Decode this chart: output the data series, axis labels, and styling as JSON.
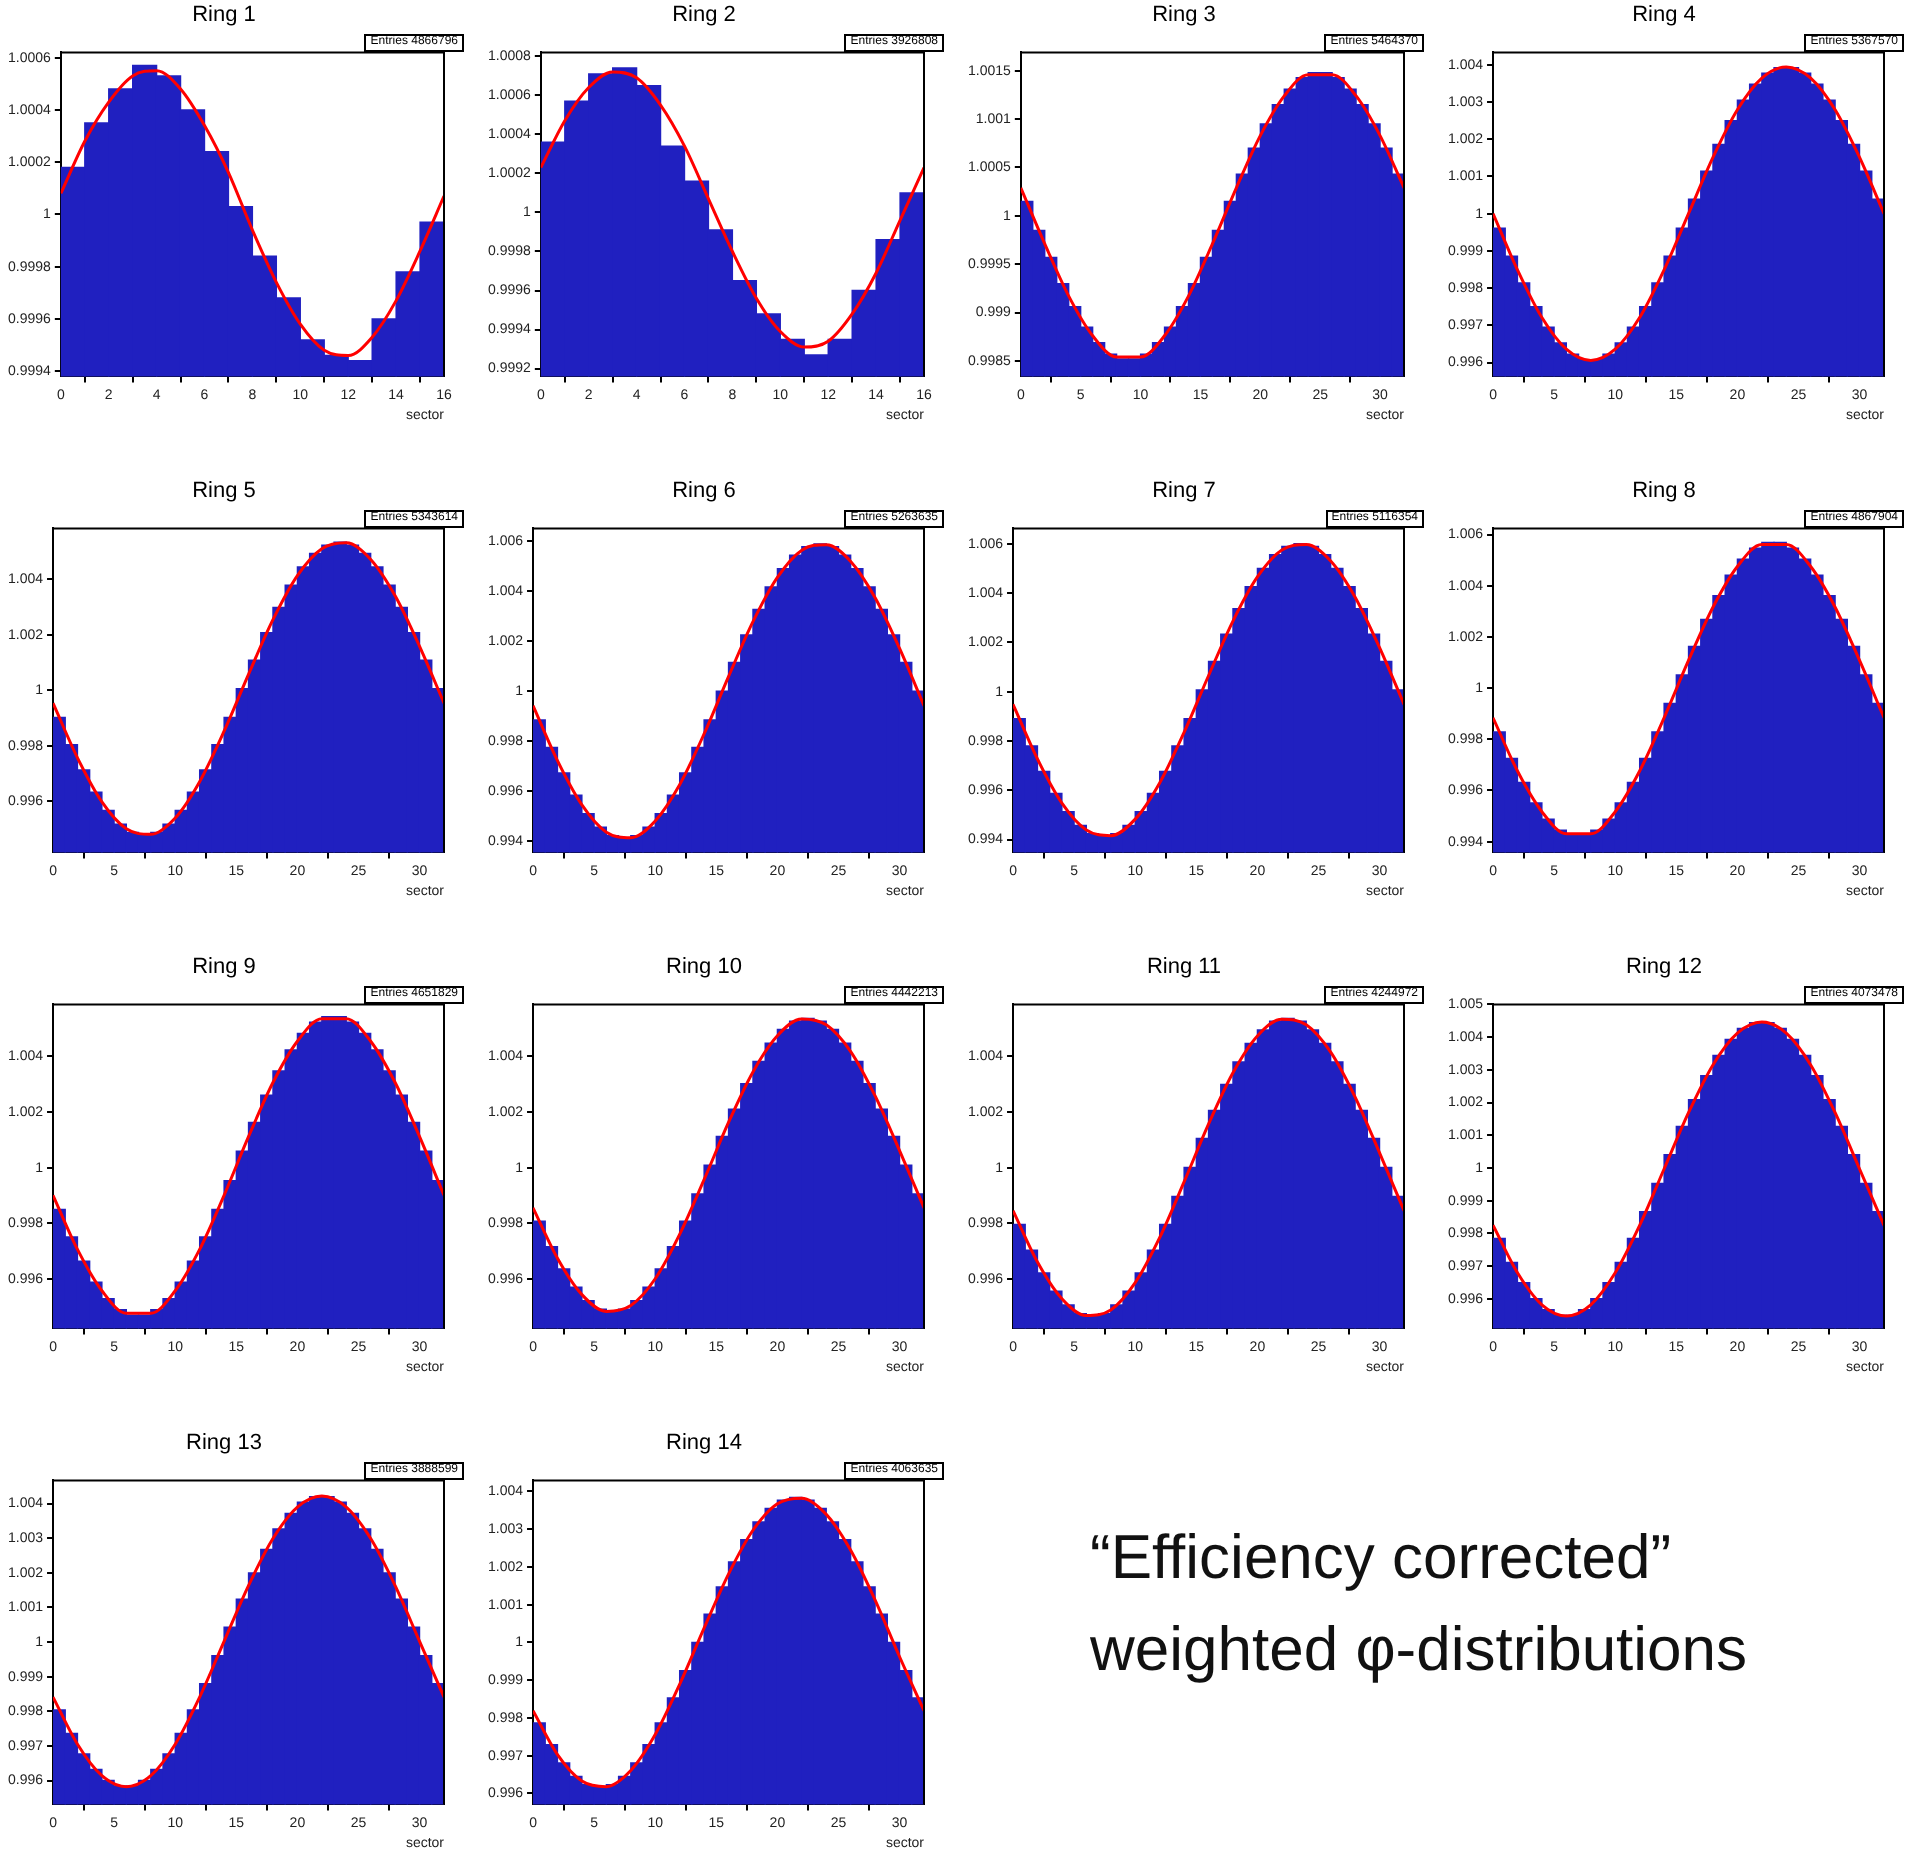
{
  "chart_data": [
    {
      "type": "histogram",
      "title": "Ring 1",
      "xlabel": "sector",
      "annotations": [
        "Entries 4866796"
      ],
      "bins": [
        0,
        1,
        2,
        3,
        4,
        5,
        6,
        7,
        8,
        9,
        10,
        11,
        12,
        13,
        14,
        15,
        16
      ],
      "xlim": [
        0,
        16
      ],
      "xticks": [
        0,
        2,
        4,
        6,
        8,
        10,
        12,
        14,
        16
      ],
      "ylim": [
        0.99938,
        1.00062
      ],
      "yticks": [
        0.9994,
        0.9996,
        0.9998,
        1,
        1.0002,
        1.0004,
        1.0006
      ],
      "series": [
        {
          "type": "histogram",
          "color": "#2020c0",
          "values": [
            1.00018,
            1.00035,
            1.00048,
            1.00057,
            1.00053,
            1.0004,
            1.00024,
            1.00003,
            0.99984,
            0.99968,
            0.99952,
            0.99946,
            0.99944,
            0.9996,
            0.99978,
            0.99997
          ]
        },
        {
          "type": "line",
          "color": "#ff0000",
          "x": [
            0,
            1,
            2,
            3,
            4,
            5,
            6,
            7,
            8,
            9,
            10,
            11,
            12,
            13,
            14,
            15,
            16
          ],
          "values": [
            1.00008,
            1.00028,
            1.00043,
            1.00053,
            1.00055,
            1.00048,
            1.00034,
            1.00016,
            0.99994,
            0.99974,
            0.99958,
            0.99948,
            0.99946,
            0.99953,
            0.99967,
            0.99986,
            1.00007
          ]
        }
      ]
    },
    {
      "type": "histogram",
      "title": "Ring 2",
      "xlabel": "sector",
      "annotations": [
        "Entries 3926808"
      ],
      "bins": [
        0,
        1,
        2,
        3,
        4,
        5,
        6,
        7,
        8,
        9,
        10,
        11,
        12,
        13,
        14,
        15,
        16
      ],
      "xlim": [
        0,
        16
      ],
      "xticks": [
        0,
        2,
        4,
        6,
        8,
        10,
        12,
        14,
        16
      ],
      "ylim": [
        0.99916,
        1.00082
      ],
      "yticks": [
        0.9992,
        0.9994,
        0.9996,
        0.9998,
        1,
        1.0002,
        1.0004,
        1.0006,
        1.0008
      ],
      "series": [
        {
          "type": "histogram",
          "color": "#2020c0",
          "values": [
            1.00036,
            1.00057,
            1.00071,
            1.00074,
            1.00065,
            1.00034,
            1.00016,
            0.99991,
            0.99965,
            0.99948,
            0.99935,
            0.99927,
            0.99935,
            0.9996,
            0.99986,
            1.0001
          ]
        },
        {
          "type": "line",
          "color": "#ff0000",
          "x": [
            0,
            1,
            2,
            3,
            4,
            5,
            6,
            7,
            8,
            9,
            10,
            11,
            12,
            13,
            14,
            15,
            16
          ],
          "values": [
            1.00023,
            1.00047,
            1.00064,
            1.00072,
            1.00069,
            1.00055,
            1.00034,
            1.00007,
            0.9998,
            0.99956,
            0.99939,
            0.99931,
            0.99934,
            0.99948,
            0.99969,
            0.99996,
            1.00023
          ]
        }
      ]
    },
    {
      "type": "histogram",
      "title": "Ring 3",
      "xlabel": "sector",
      "annotations": [
        "Entries 5464370"
      ],
      "bins": [
        0,
        1,
        2,
        3,
        4,
        5,
        6,
        7,
        8,
        9,
        10,
        11,
        12,
        13,
        14,
        15,
        16,
        17,
        18,
        19,
        20,
        21,
        22,
        23,
        24,
        25,
        26,
        27,
        28,
        29,
        30,
        31,
        32
      ],
      "xlim": [
        0,
        32
      ],
      "xticks": [
        0,
        5,
        10,
        15,
        20,
        25,
        30
      ],
      "ylim": [
        0.99834,
        1.00169
      ],
      "yticks": [
        0.9985,
        0.999,
        0.9995,
        1,
        1.0005,
        1.001,
        1.0015
      ],
      "series": [
        {
          "type": "histogram",
          "color": "#2020c0",
          "values": [
            1.00015,
            0.99985,
            0.99957,
            0.9993,
            0.99906,
            0.99885,
            0.99869,
            0.99857,
            0.99852,
            0.99852,
            0.99857,
            0.99869,
            0.99885,
            0.99906,
            0.9993,
            0.99957,
            0.99985,
            1.00015,
            1.00043,
            1.0007,
            1.00095,
            1.00115,
            1.00131,
            1.00143,
            1.00148,
            1.00148,
            1.00143,
            1.00131,
            1.00115,
            1.00095,
            1.0007,
            1.00043
          ]
        },
        {
          "type": "line",
          "color": "#ff0000",
          "x": [
            0,
            2,
            4,
            6,
            8,
            10,
            12,
            14,
            16,
            18,
            20,
            22,
            24,
            26,
            28,
            30,
            32
          ],
          "values": [
            1.00029,
            0.99971,
            0.99917,
            0.99876,
            0.99854,
            0.99854,
            0.99876,
            0.99917,
            0.99971,
            1.00029,
            1.00083,
            1.00124,
            1.00146,
            1.00146,
            1.00124,
            1.00083,
            1.00029
          ]
        }
      ]
    },
    {
      "type": "histogram",
      "title": "Ring 4",
      "xlabel": "sector",
      "annotations": [
        "Entries 5367570"
      ],
      "bins": [
        0,
        1,
        2,
        3,
        4,
        5,
        6,
        7,
        8,
        9,
        10,
        11,
        12,
        13,
        14,
        15,
        16,
        17,
        18,
        19,
        20,
        21,
        22,
        23,
        24,
        25,
        26,
        27,
        28,
        29,
        30,
        31,
        32
      ],
      "xlim": [
        0,
        32
      ],
      "xticks": [
        0,
        5,
        10,
        15,
        20,
        25,
        30
      ],
      "ylim": [
        0.99563,
        1.00433
      ],
      "yticks": [
        0.996,
        0.997,
        0.998,
        0.999,
        1,
        1.001,
        1.002,
        1.003,
        1.004
      ],
      "series": [
        {
          "type": "histogram",
          "color": "#2020c0",
          "values": [
            0.99961,
            0.99886,
            0.99814,
            0.9975,
            0.99695,
            0.99653,
            0.99623,
            0.99608,
            0.99608,
            0.99623,
            0.99653,
            0.99695,
            0.9975,
            0.99814,
            0.99886,
            0.99961,
            1.00039,
            1.00114,
            1.00186,
            1.0025,
            1.00305,
            1.00348,
            1.00377,
            1.00392,
            1.00392,
            1.00377,
            1.00348,
            1.00305,
            1.0025,
            1.00186,
            1.00114,
            1.00039
          ]
        },
        {
          "type": "line",
          "color": "#ff0000",
          "x": [
            0,
            2,
            4,
            6,
            8,
            10,
            12,
            14,
            16,
            18,
            20,
            22,
            24,
            26,
            28,
            30,
            32
          ],
          "values": [
            1,
            0.99849,
            0.99721,
            0.99636,
            0.99606,
            0.99636,
            0.99721,
            0.99849,
            1,
            1.00151,
            1.00279,
            1.00364,
            1.00394,
            1.00364,
            1.00279,
            1.00151,
            1
          ]
        }
      ]
    },
    {
      "type": "histogram",
      "title": "Ring 5",
      "xlabel": "sector",
      "annotations": [
        "Entries 5343614"
      ],
      "bins": [
        0,
        1,
        2,
        3,
        4,
        5,
        6,
        7,
        8,
        9,
        10,
        11,
        12,
        13,
        14,
        15,
        16,
        17,
        18,
        19,
        20,
        21,
        22,
        23,
        24,
        25,
        26,
        27,
        28,
        29,
        30,
        31,
        32
      ],
      "xlim": [
        0,
        32
      ],
      "xticks": [
        0,
        5,
        10,
        15,
        20,
        25,
        30
      ],
      "ylim": [
        0.99416,
        1.00584
      ],
      "yticks": [
        0.996,
        0.998,
        1,
        1.002,
        1.004
      ],
      "series": [
        {
          "type": "histogram",
          "color": "#2020c0",
          "values": [
            0.99903,
            0.99804,
            0.99713,
            0.99633,
            0.99567,
            0.99518,
            0.99488,
            0.99478,
            0.99488,
            0.99518,
            0.99567,
            0.99633,
            0.99713,
            0.99804,
            0.99903,
            1.00006,
            1.00109,
            1.00208,
            1.00299,
            1.00379,
            1.00445,
            1.00494,
            1.00524,
            1.00534,
            1.00524,
            1.00494,
            1.00445,
            1.00379,
            1.00299,
            1.00208,
            1.00109,
            1.00006
          ]
        },
        {
          "type": "line",
          "color": "#ff0000",
          "x": [
            0,
            2,
            4,
            6,
            8,
            10,
            12,
            14,
            16,
            18,
            20,
            22,
            24,
            26,
            28,
            30,
            32
          ],
          "values": [
            0.99954,
            0.99757,
            0.99598,
            0.99501,
            0.99481,
            0.9954,
            0.99671,
            0.99853,
            1.00058,
            1.00255,
            1.00414,
            1.00511,
            1.00532,
            1.00472,
            1.00341,
            1.00159,
            0.99954
          ]
        }
      ]
    },
    {
      "type": "histogram",
      "title": "Ring 6",
      "xlabel": "sector",
      "annotations": [
        "Entries 5263635"
      ],
      "bins": [
        0,
        1,
        2,
        3,
        4,
        5,
        6,
        7,
        8,
        9,
        10,
        11,
        12,
        13,
        14,
        15,
        16,
        17,
        18,
        19,
        20,
        21,
        22,
        23,
        24,
        25,
        26,
        27,
        28,
        29,
        30,
        31,
        32
      ],
      "xlim": [
        0,
        32
      ],
      "xticks": [
        0,
        5,
        10,
        15,
        20,
        25,
        30
      ],
      "ylim": [
        0.99356,
        1.00652
      ],
      "yticks": [
        0.994,
        0.996,
        0.998,
        1,
        1.002,
        1.004,
        1.006
      ],
      "series": [
        {
          "type": "histogram",
          "color": "#2020c0",
          "values": [
            0.99886,
            0.99776,
            0.99674,
            0.99585,
            0.99511,
            0.99457,
            0.99423,
            0.99412,
            0.99423,
            0.99457,
            0.99511,
            0.99585,
            0.99674,
            0.99776,
            0.99886,
            1.00001,
            1.00116,
            1.00226,
            1.00328,
            1.00418,
            1.00491,
            1.00545,
            1.00579,
            1.0059,
            1.00579,
            1.00545,
            1.00491,
            1.00418,
            1.00328,
            1.00226,
            1.00116,
            1.00001
          ]
        },
        {
          "type": "line",
          "color": "#ff0000",
          "x": [
            0,
            2,
            4,
            6,
            8,
            10,
            12,
            14,
            16,
            18,
            20,
            22,
            24,
            26,
            28,
            30,
            32
          ],
          "values": [
            0.99943,
            0.99723,
            0.99546,
            0.99437,
            0.99415,
            0.99482,
            0.99627,
            0.9983,
            1.00059,
            1.00279,
            1.00456,
            1.00565,
            1.00587,
            1.0052,
            1.00375,
            1.00172,
            0.99943
          ]
        }
      ]
    },
    {
      "type": "histogram",
      "title": "Ring 7",
      "xlabel": "sector",
      "annotations": [
        "Entries 5116354"
      ],
      "bins": [
        0,
        1,
        2,
        3,
        4,
        5,
        6,
        7,
        8,
        9,
        10,
        11,
        12,
        13,
        14,
        15,
        16,
        17,
        18,
        19,
        20,
        21,
        22,
        23,
        24,
        25,
        26,
        27,
        28,
        29,
        30,
        31,
        32
      ],
      "xlim": [
        0,
        32
      ],
      "xticks": [
        0,
        5,
        10,
        15,
        20,
        25,
        30
      ],
      "ylim": [
        0.99348,
        1.00663
      ],
      "yticks": [
        0.994,
        0.996,
        0.998,
        1,
        1.002,
        1.004,
        1.006
      ],
      "series": [
        {
          "type": "histogram",
          "color": "#2020c0",
          "values": [
            0.99891,
            0.9978,
            0.99677,
            0.99587,
            0.99513,
            0.99458,
            0.99424,
            0.99413,
            0.99424,
            0.99458,
            0.99513,
            0.99587,
            0.99677,
            0.9978,
            0.99891,
            1.00007,
            1.00123,
            1.00234,
            1.00337,
            1.00427,
            1.00501,
            1.00556,
            1.0059,
            1.00601,
            1.0059,
            1.00556,
            1.00501,
            1.00427,
            1.00337,
            1.00234,
            1.00123,
            1.00007
          ]
        },
        {
          "type": "line",
          "color": "#ff0000",
          "x": [
            0,
            2,
            4,
            6,
            8,
            10,
            12,
            14,
            16,
            18,
            20,
            22,
            24,
            26,
            28,
            30,
            32
          ],
          "values": [
            0.99949,
            0.99727,
            0.99548,
            0.99439,
            0.99416,
            0.99483,
            0.9963,
            0.99835,
            1.00065,
            1.00287,
            1.00466,
            1.00575,
            1.00598,
            1.00531,
            1.00384,
            1.00179,
            0.99949
          ]
        }
      ]
    },
    {
      "type": "histogram",
      "title": "Ring 8",
      "xlabel": "sector",
      "annotations": [
        "Entries 4867904"
      ],
      "bins": [
        0,
        1,
        2,
        3,
        4,
        5,
        6,
        7,
        8,
        9,
        10,
        11,
        12,
        13,
        14,
        15,
        16,
        17,
        18,
        19,
        20,
        21,
        22,
        23,
        24,
        25,
        26,
        27,
        28,
        29,
        30,
        31,
        32
      ],
      "xlim": [
        0,
        32
      ],
      "xticks": [
        0,
        5,
        10,
        15,
        20,
        25,
        30
      ],
      "ylim": [
        0.99358,
        1.00624
      ],
      "yticks": [
        0.994,
        0.996,
        0.998,
        1,
        1.002,
        1.004,
        1.006
      ],
      "series": [
        {
          "type": "histogram",
          "color": "#2020c0",
          "values": [
            0.99829,
            0.99725,
            0.99631,
            0.99551,
            0.99488,
            0.99445,
            0.99423,
            0.99423,
            0.99445,
            0.99488,
            0.99551,
            0.99631,
            0.99725,
            0.99829,
            0.9994,
            1.00052,
            1.00163,
            1.00268,
            1.00361,
            1.00441,
            1.00504,
            1.00547,
            1.00569,
            1.00569,
            1.00547,
            1.00504,
            1.00441,
            1.00361,
            1.00268,
            1.00163,
            1.00052,
            0.9994
          ]
        },
        {
          "type": "line",
          "color": "#ff0000",
          "x": [
            0,
            2,
            4,
            6,
            8,
            10,
            12,
            14,
            16,
            18,
            20,
            22,
            24,
            26,
            28,
            30,
            32
          ],
          "values": [
            0.99884,
            0.99676,
            0.99517,
            0.99431,
            0.99431,
            0.99517,
            0.99676,
            0.99884,
            1.00108,
            1.00316,
            1.00475,
            1.00561,
            1.00561,
            1.00475,
            1.00316,
            1.00108,
            0.99884
          ]
        }
      ]
    },
    {
      "type": "histogram",
      "title": "Ring 9",
      "xlabel": "sector",
      "annotations": [
        "Entries 4651829"
      ],
      "bins": [
        0,
        1,
        2,
        3,
        4,
        5,
        6,
        7,
        8,
        9,
        10,
        11,
        12,
        13,
        14,
        15,
        16,
        17,
        18,
        19,
        20,
        21,
        22,
        23,
        24,
        25,
        26,
        27,
        28,
        29,
        30,
        31,
        32
      ],
      "xlim": [
        0,
        32
      ],
      "xticks": [
        0,
        5,
        10,
        15,
        20,
        25,
        30
      ],
      "ylim": [
        0.99424,
        1.00585
      ],
      "yticks": [
        0.996,
        0.998,
        1,
        1.002,
        1.004
      ],
      "series": [
        {
          "type": "histogram",
          "color": "#2020c0",
          "values": [
            0.9985,
            0.99752,
            0.99665,
            0.9959,
            0.99531,
            0.99491,
            0.99471,
            0.99471,
            0.99491,
            0.99531,
            0.9959,
            0.99665,
            0.99752,
            0.9985,
            0.99953,
            1.00059,
            1.00162,
            1.0026,
            1.00347,
            1.00422,
            1.00481,
            1.00521,
            1.00541,
            1.00541,
            1.00521,
            1.00481,
            1.00422,
            1.00347,
            1.0026,
            1.00162,
            1.00059,
            0.99953
          ]
        },
        {
          "type": "line",
          "color": "#ff0000",
          "x": [
            0,
            2,
            4,
            6,
            8,
            10,
            12,
            14,
            16,
            18,
            20,
            22,
            24,
            26,
            28,
            30,
            32
          ],
          "values": [
            0.99901,
            0.99707,
            0.99559,
            0.99478,
            0.99478,
            0.99559,
            0.99707,
            0.99901,
            1.00111,
            1.00305,
            1.00453,
            1.00534,
            1.00534,
            1.00453,
            1.00305,
            1.00111,
            0.99901
          ]
        }
      ]
    },
    {
      "type": "histogram",
      "title": "Ring 10",
      "xlabel": "sector",
      "annotations": [
        "Entries 4442213"
      ],
      "bins": [
        0,
        1,
        2,
        3,
        4,
        5,
        6,
        7,
        8,
        9,
        10,
        11,
        12,
        13,
        14,
        15,
        16,
        17,
        18,
        19,
        20,
        21,
        22,
        23,
        24,
        25,
        26,
        27,
        28,
        29,
        30,
        31,
        32
      ],
      "xlim": [
        0,
        32
      ],
      "xticks": [
        0,
        5,
        10,
        15,
        20,
        25,
        30
      ],
      "ylim": [
        0.99424,
        1.00585
      ],
      "yticks": [
        0.996,
        0.998,
        1,
        1.002,
        1.004
      ],
      "series": [
        {
          "type": "histogram",
          "color": "#2020c0",
          "values": [
            0.99808,
            0.99717,
            0.99637,
            0.99572,
            0.99523,
            0.99493,
            0.99483,
            0.99493,
            0.99523,
            0.99572,
            0.99637,
            0.99717,
            0.99808,
            0.99906,
            1.00009,
            1.00112,
            1.0021,
            1.00301,
            1.00381,
            1.00446,
            1.00495,
            1.00525,
            1.00535,
            1.00525,
            1.00495,
            1.00446,
            1.00381,
            1.00301,
            1.0021,
            1.00112,
            1.00009,
            0.99906
          ]
        },
        {
          "type": "line",
          "color": "#ff0000",
          "x": [
            0,
            2,
            4,
            6,
            8,
            10,
            12,
            14,
            16,
            18,
            20,
            22,
            24,
            26,
            28,
            30,
            32
          ],
          "values": [
            0.99856,
            0.99675,
            0.99545,
            0.99485,
            0.99506,
            0.99602,
            0.99761,
            0.99957,
            1.00162,
            1.00343,
            1.00473,
            1.00533,
            1.00512,
            1.00416,
            1.00257,
            1.00061,
            0.99856
          ]
        }
      ]
    },
    {
      "type": "histogram",
      "title": "Ring 11",
      "xlabel": "sector",
      "annotations": [
        "Entries 4244972"
      ],
      "bins": [
        0,
        1,
        2,
        3,
        4,
        5,
        6,
        7,
        8,
        9,
        10,
        11,
        12,
        13,
        14,
        15,
        16,
        17,
        18,
        19,
        20,
        21,
        22,
        23,
        24,
        25,
        26,
        27,
        28,
        29,
        30,
        31,
        32
      ],
      "xlim": [
        0,
        32
      ],
      "xticks": [
        0,
        5,
        10,
        15,
        20,
        25,
        30
      ],
      "ylim": [
        0.99424,
        1.00585
      ],
      "yticks": [
        0.996,
        0.998,
        1,
        1.002,
        1.004
      ],
      "series": [
        {
          "type": "histogram",
          "color": "#2020c0",
          "values": [
            0.99797,
            0.99704,
            0.99623,
            0.99557,
            0.99508,
            0.99477,
            0.99467,
            0.99477,
            0.99508,
            0.99557,
            0.99623,
            0.99704,
            0.99797,
            0.99897,
            1.00001,
            1.00105,
            1.00205,
            1.00298,
            1.00379,
            1.00445,
            1.00494,
            1.00525,
            1.00535,
            1.00525,
            1.00494,
            1.00445,
            1.00379,
            1.00298,
            1.00205,
            1.00105,
            1.00001,
            0.99897
          ]
        },
        {
          "type": "line",
          "color": "#ff0000",
          "x": [
            0,
            2,
            4,
            6,
            8,
            10,
            12,
            14,
            16,
            18,
            20,
            22,
            24,
            26,
            28,
            30,
            32
          ],
          "values": [
            0.99846,
            0.99662,
            0.9953,
            0.9947,
            0.9949,
            0.99588,
            0.99749,
            0.99949,
            1.00156,
            1.0034,
            1.00472,
            1.00532,
            1.00512,
            1.00414,
            1.00253,
            1.00053,
            0.99846
          ]
        }
      ]
    },
    {
      "type": "histogram",
      "title": "Ring 12",
      "xlabel": "sector",
      "annotations": [
        "Entries 4073478"
      ],
      "bins": [
        0,
        1,
        2,
        3,
        4,
        5,
        6,
        7,
        8,
        9,
        10,
        11,
        12,
        13,
        14,
        15,
        16,
        17,
        18,
        19,
        20,
        21,
        22,
        23,
        24,
        25,
        26,
        27,
        28,
        29,
        30,
        31,
        32
      ],
      "xlim": [
        0,
        32
      ],
      "xticks": [
        0,
        5,
        10,
        15,
        20,
        25,
        30
      ],
      "ylim": [
        0.9951,
        1.005
      ],
      "yticks": [
        0.996,
        0.997,
        0.998,
        0.999,
        1,
        1.001,
        1.002,
        1.003,
        1.004,
        1.005
      ],
      "series": [
        {
          "type": "histogram",
          "color": "#2020c0",
          "values": [
            0.99785,
            0.99712,
            0.9965,
            0.99601,
            0.99567,
            0.9955,
            0.9955,
            0.99567,
            0.99601,
            0.9965,
            0.99712,
            0.99785,
            0.99867,
            0.99953,
            1.00041,
            1.00127,
            1.00209,
            1.00282,
            1.00344,
            1.00393,
            1.00427,
            1.00444,
            1.00444,
            1.00427,
            1.00393,
            1.00344,
            1.00282,
            1.00209,
            1.00127,
            1.00041,
            0.99953,
            0.99867
          ]
        },
        {
          "type": "line",
          "color": "#ff0000",
          "x": [
            0,
            2,
            4,
            6,
            8,
            10,
            12,
            14,
            16,
            18,
            20,
            22,
            24,
            26,
            28,
            30,
            32
          ],
          "values": [
            0.99825,
            0.9968,
            0.99582,
            0.99548,
            0.99582,
            0.9968,
            0.99825,
            0.99997,
            1.00169,
            1.00315,
            1.00412,
            1.00446,
            1.00412,
            1.00315,
            1.00169,
            0.99997,
            0.99825
          ]
        }
      ]
    },
    {
      "type": "histogram",
      "title": "Ring 13",
      "xlabel": "sector",
      "annotations": [
        "Entries 3888599"
      ],
      "bins": [
        0,
        1,
        2,
        3,
        4,
        5,
        6,
        7,
        8,
        9,
        10,
        11,
        12,
        13,
        14,
        15,
        16,
        17,
        18,
        19,
        20,
        21,
        22,
        23,
        24,
        25,
        26,
        27,
        28,
        29,
        30,
        31,
        32
      ],
      "xlim": [
        0,
        32
      ],
      "xticks": [
        0,
        5,
        10,
        15,
        20,
        25,
        30
      ],
      "ylim": [
        0.99531,
        1.00467
      ],
      "yticks": [
        0.996,
        0.997,
        0.998,
        0.999,
        1,
        1.001,
        1.002,
        1.003,
        1.004
      ],
      "series": [
        {
          "type": "histogram",
          "color": "#2020c0",
          "values": [
            0.99804,
            0.99736,
            0.99677,
            0.99632,
            0.996,
            0.99584,
            0.99584,
            0.996,
            0.99632,
            0.99677,
            0.99736,
            0.99804,
            0.9988,
            0.99961,
            1.00043,
            1.00124,
            1.002,
            1.00268,
            1.00327,
            1.00372,
            1.00404,
            1.0042,
            1.0042,
            1.00404,
            1.00372,
            1.00327,
            1.00268,
            1.002,
            1.00124,
            1.00043,
            0.99961,
            0.9988
          ]
        },
        {
          "type": "line",
          "color": "#ff0000",
          "x": [
            0,
            2,
            4,
            6,
            8,
            10,
            12,
            14,
            16,
            18,
            20,
            22,
            24,
            26,
            28,
            30,
            32
          ],
          "values": [
            0.99841,
            0.99705,
            0.99614,
            0.99582,
            0.99614,
            0.99705,
            0.99841,
            1.00002,
            1.00163,
            1.00299,
            1.0039,
            1.00422,
            1.0039,
            1.00299,
            1.00163,
            1.00002,
            0.99841
          ]
        }
      ]
    },
    {
      "type": "histogram",
      "title": "Ring 14",
      "xlabel": "sector",
      "annotations": [
        "Entries 4063635"
      ],
      "bins": [
        0,
        1,
        2,
        3,
        4,
        5,
        6,
        7,
        8,
        9,
        10,
        11,
        12,
        13,
        14,
        15,
        16,
        17,
        18,
        19,
        20,
        21,
        22,
        23,
        24,
        25,
        26,
        27,
        28,
        29,
        30,
        31,
        32
      ],
      "xlim": [
        0,
        32
      ],
      "xticks": [
        0,
        5,
        10,
        15,
        20,
        25,
        30
      ],
      "ylim": [
        0.99571,
        1.00429
      ],
      "yticks": [
        0.996,
        0.997,
        0.998,
        0.999,
        1,
        1.001,
        1.002,
        1.003,
        1.004
      ],
      "series": [
        {
          "type": "histogram",
          "color": "#2020c0",
          "values": [
            0.99787,
            0.99729,
            0.99681,
            0.99645,
            0.99623,
            0.99616,
            0.99623,
            0.99645,
            0.99681,
            0.99729,
            0.99787,
            0.99853,
            0.99925,
            1,
            1.00075,
            1.00147,
            1.00213,
            1.00272,
            1.00319,
            1.00355,
            1.00377,
            1.00384,
            1.00377,
            1.00355,
            1.00319,
            1.00272,
            1.00213,
            1.00147,
            1.00075,
            1,
            0.99925,
            0.99853
          ]
        },
        {
          "type": "line",
          "color": "#ff0000",
          "x": [
            0,
            2,
            4,
            6,
            8,
            10,
            12,
            14,
            16,
            18,
            20,
            22,
            24,
            26,
            28,
            30,
            32
          ],
          "values": [
            0.99819,
            0.99703,
            0.99633,
            0.99618,
            0.99661,
            0.99756,
            0.99889,
            1.00038,
            1.00181,
            1.00297,
            1.00367,
            1.00382,
            1.00339,
            1.00244,
            1.00112,
            0.99962,
            0.99819
          ]
        }
      ]
    },
    {
      "type": "other",
      "annotations": [
        "“Efficiency corrected”",
        "weighted φ-distributions"
      ]
    }
  ]
}
